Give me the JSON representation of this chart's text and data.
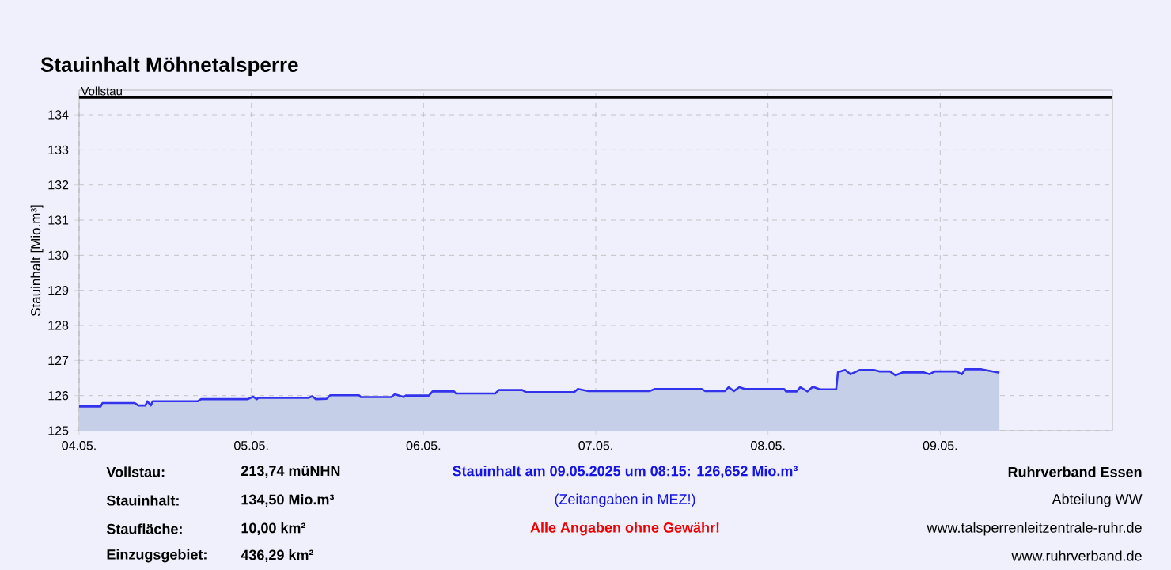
{
  "chart_data": {
    "type": "area",
    "title": "Stauinhalt Möhnetalsperre",
    "ylabel": "Stauinhalt [Mio.m³]",
    "xlim": [
      "2025-05-04T00:00",
      "2025-05-10T00:00"
    ],
    "xticks": [
      {
        "value": "2025-05-04T00:00",
        "label": "04.05."
      },
      {
        "value": "2025-05-05T00:00",
        "label": "05.05."
      },
      {
        "value": "2025-05-06T00:00",
        "label": "06.05."
      },
      {
        "value": "2025-05-07T00:00",
        "label": "07.05."
      },
      {
        "value": "2025-05-08T00:00",
        "label": "08.05."
      },
      {
        "value": "2025-05-09T00:00",
        "label": "09.05."
      }
    ],
    "ylim": [
      125,
      134.7
    ],
    "yticks": [
      125,
      126,
      127,
      128,
      129,
      130,
      131,
      132,
      133,
      134
    ],
    "grid": true,
    "ref_lines": [
      {
        "axis": "y",
        "value": 134.5,
        "label": "Vollstau",
        "color": "#000000"
      }
    ],
    "series": [
      {
        "color": "#3333ee",
        "x": [
          "2025-05-04T00:00",
          "2025-05-04T03:00",
          "2025-05-04T03:15",
          "2025-05-04T07:45",
          "2025-05-04T08:15",
          "2025-05-04T09:15",
          "2025-05-04T09:30",
          "2025-05-04T10:00",
          "2025-05-04T10:15",
          "2025-05-04T16:30",
          "2025-05-04T17:00",
          "2025-05-04T23:30",
          "2025-05-05T00:15",
          "2025-05-05T00:45",
          "2025-05-05T01:00",
          "2025-05-05T08:00",
          "2025-05-05T08:30",
          "2025-05-05T09:00",
          "2025-05-05T10:30",
          "2025-05-05T11:00",
          "2025-05-05T15:00",
          "2025-05-05T15:15",
          "2025-05-05T19:30",
          "2025-05-05T20:00",
          "2025-05-05T21:15",
          "2025-05-05T21:30",
          "2025-05-06T00:45",
          "2025-05-06T01:15",
          "2025-05-06T04:15",
          "2025-05-06T04:30",
          "2025-05-06T10:00",
          "2025-05-06T10:30",
          "2025-05-06T13:45",
          "2025-05-06T14:15",
          "2025-05-06T21:00",
          "2025-05-06T21:30",
          "2025-05-06T23:00",
          "2025-05-07T07:30",
          "2025-05-07T08:15",
          "2025-05-07T14:45",
          "2025-05-07T15:15",
          "2025-05-07T18:00",
          "2025-05-07T18:30",
          "2025-05-07T19:15",
          "2025-05-07T20:00",
          "2025-05-07T20:45",
          "2025-05-08T02:15",
          "2025-05-08T02:30",
          "2025-05-08T04:00",
          "2025-05-08T04:30",
          "2025-05-08T05:30",
          "2025-05-08T06:15",
          "2025-05-08T07:15",
          "2025-05-08T09:30",
          "2025-05-08T09:45",
          "2025-05-08T10:45",
          "2025-05-08T11:30",
          "2025-05-08T12:45",
          "2025-05-08T14:45",
          "2025-05-08T15:30",
          "2025-05-08T17:00",
          "2025-05-08T17:45",
          "2025-05-08T18:45",
          "2025-05-08T21:45",
          "2025-05-08T22:30",
          "2025-05-08T23:15",
          "2025-05-09T02:15",
          "2025-05-09T03:00",
          "2025-05-09T03:30",
          "2025-05-09T05:45",
          "2025-05-09T08:15"
        ],
        "values": [
          125.69,
          125.69,
          125.79,
          125.79,
          125.72,
          125.72,
          125.84,
          125.72,
          125.84,
          125.84,
          125.9,
          125.9,
          125.97,
          125.9,
          125.94,
          125.94,
          125.98,
          125.9,
          125.91,
          126.01,
          126.01,
          125.96,
          125.96,
          126.04,
          125.96,
          126.0,
          126.0,
          126.12,
          126.12,
          126.06,
          126.06,
          126.16,
          126.16,
          126.1,
          126.1,
          126.19,
          126.13,
          126.13,
          126.19,
          126.19,
          126.13,
          126.13,
          126.24,
          126.13,
          126.24,
          126.19,
          126.19,
          126.12,
          126.12,
          126.24,
          126.12,
          126.25,
          126.18,
          126.18,
          126.67,
          126.73,
          126.61,
          126.73,
          126.73,
          126.69,
          126.69,
          126.58,
          126.66,
          126.66,
          126.61,
          126.69,
          126.69,
          126.61,
          126.75,
          126.75,
          126.652
        ]
      }
    ],
    "annotations": [
      "Vollstau:",
      "213,74 müNHN",
      "Stauinhalt:",
      "134,50 Mio.m³",
      "Staufläche:",
      "10,00 km²",
      "Einzugsgebiet:",
      "436,29 km²",
      "Stauinhalt am 09.05.2025 um 08:15:  126,652 Mio.m³",
      "(Zeitangaben in MEZ!)",
      "Alle Angaben ohne Gewähr!",
      "Ruhrverband Essen",
      "Abteilung WW",
      "www.talsperrenleitzentrale-ruhr.de",
      "www.ruhrverband.de"
    ]
  }
}
